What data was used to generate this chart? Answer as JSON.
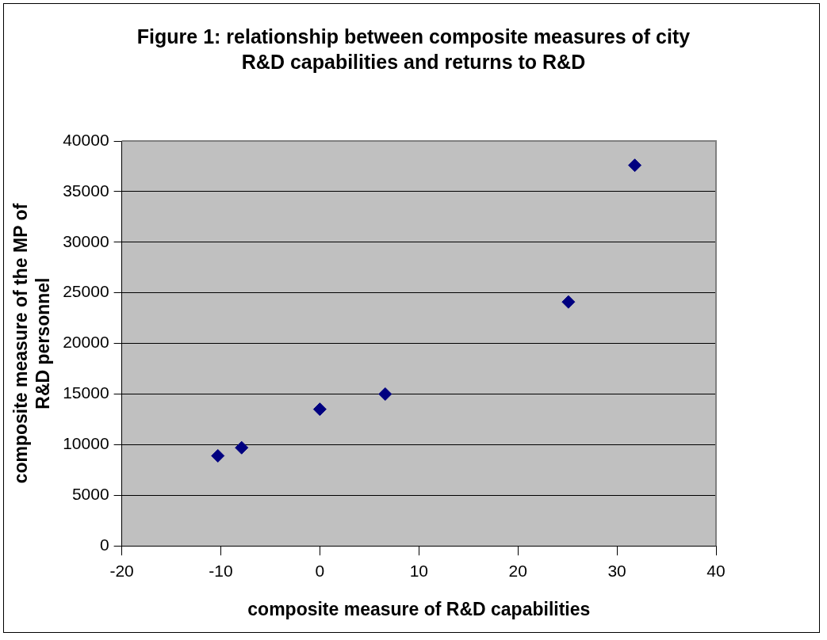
{
  "chart_data": {
    "type": "scatter",
    "title": "Figure 1: relationship between composite measures of city R&D capabilities and returns to R&D",
    "xlabel": "composite measure of R&D capabilities",
    "ylabel": "composite measure of the MP of R&D personnel",
    "x": [
      -10.3,
      -7.9,
      0,
      6.6,
      25.1,
      31.8
    ],
    "values": [
      8900,
      9700,
      13500,
      15000,
      24100,
      37600
    ],
    "color": "#000080",
    "marker": "diamond",
    "xlim": [
      -20,
      40
    ],
    "xticks": [
      -20,
      -10,
      0,
      10,
      20,
      30,
      40
    ],
    "ylim": [
      0,
      40000
    ],
    "yticks": [
      0,
      5000,
      10000,
      15000,
      20000,
      25000,
      30000,
      35000,
      40000
    ],
    "grid": "y",
    "legend": false
  }
}
